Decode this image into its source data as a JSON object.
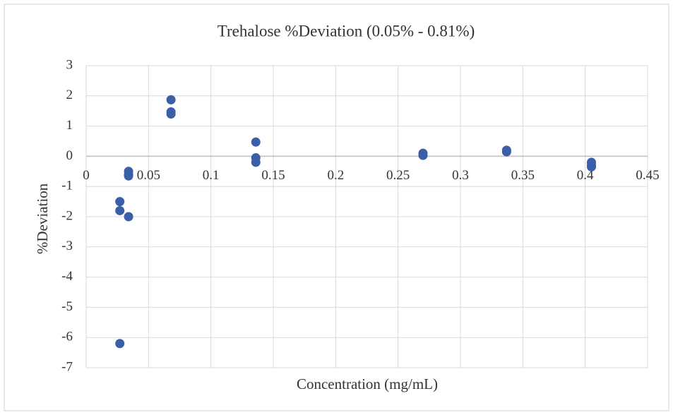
{
  "chart_data": {
    "type": "scatter",
    "title": "Trehalose %Deviation (0.05% - 0.81%)",
    "x_label": "Concentration (mg/mL)",
    "y_label": "%Deviation",
    "x": [
      0.027,
      0.027,
      0.027,
      0.034,
      0.034,
      0.034,
      0.034,
      0.068,
      0.068,
      0.068,
      0.136,
      0.136,
      0.136,
      0.27,
      0.27,
      0.337,
      0.337,
      0.405,
      0.405,
      0.405
    ],
    "values": [
      -1.5,
      -1.8,
      -6.2,
      -0.5,
      -0.6,
      -0.65,
      -2.0,
      1.87,
      1.47,
      1.4,
      0.47,
      -0.05,
      -0.2,
      0.1,
      0.03,
      0.2,
      0.15,
      -0.2,
      -0.3,
      -0.35
    ],
    "color": "#3a5ea8",
    "xlim": [
      0,
      0.45
    ],
    "xticks": [
      0,
      0.05,
      0.1,
      0.15,
      0.2,
      0.25,
      0.3,
      0.35,
      0.4,
      0.45
    ],
    "ylim": [
      -7,
      3
    ],
    "yticks": [
      -7,
      -6,
      -5,
      -4,
      -3,
      -2,
      -1,
      0,
      1,
      2,
      3
    ],
    "grid": true
  }
}
